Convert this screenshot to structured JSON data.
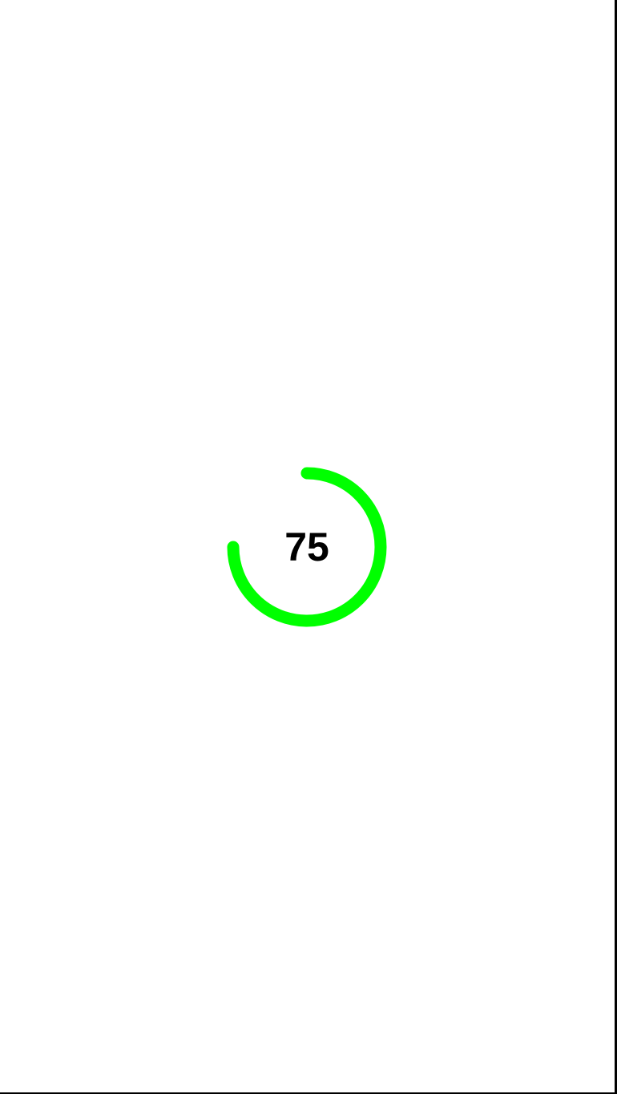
{
  "progress": {
    "value_text": "75",
    "fraction": 0.75,
    "color": "#00ff00"
  }
}
